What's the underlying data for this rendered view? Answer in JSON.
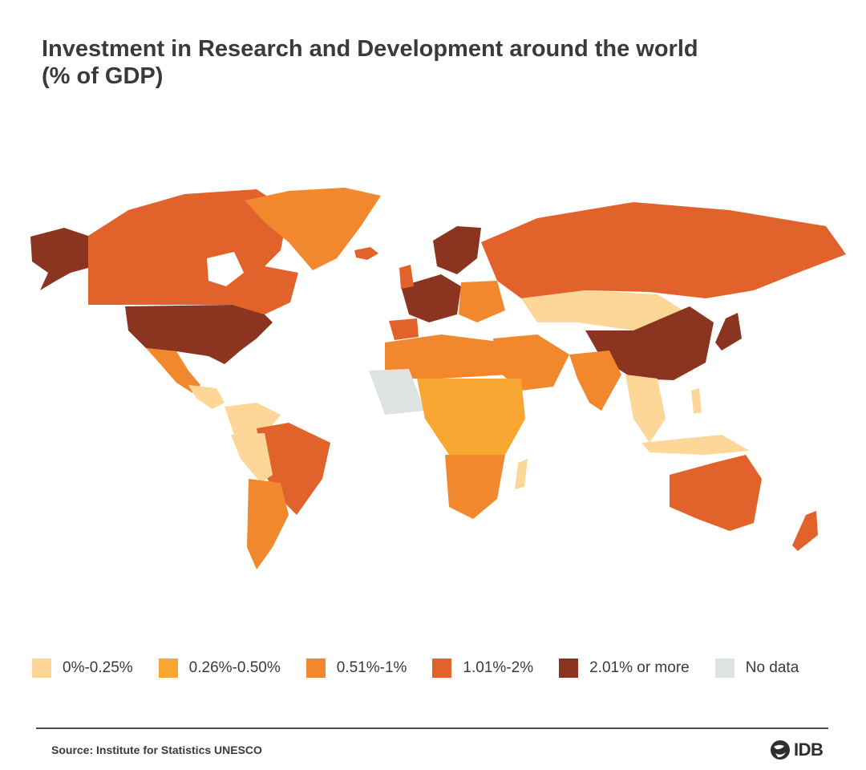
{
  "title": "Investment in Research and Development around the world (% of GDP)",
  "legend": [
    {
      "label": "0%-0.25%",
      "color": "#fdd798"
    },
    {
      "label": "0.26%-0.50%",
      "color": "#f7a731"
    },
    {
      "label": "0.51%-1%",
      "color": "#f2882d"
    },
    {
      "label": "1.01%-2%",
      "color": "#e2622b"
    },
    {
      "label": "2.01% or more",
      "color": "#8b341f"
    },
    {
      "label": "No data",
      "color": "#dfe2e3"
    }
  ],
  "source": "Source: Institute for Statistics UNESCO",
  "logo": {
    "text": "IDB",
    "icon": "globe-hand-icon"
  },
  "map_data": {
    "regions": [
      {
        "name": "Alaska",
        "category": "2.01% or more"
      },
      {
        "name": "Canada",
        "category": "1.01%-2%"
      },
      {
        "name": "Greenland",
        "category": "0.51%-1%"
      },
      {
        "name": "Iceland",
        "category": "1.01%-2%"
      },
      {
        "name": "United States",
        "category": "2.01% or more"
      },
      {
        "name": "Mexico",
        "category": "0.51%-1%"
      },
      {
        "name": "Central America",
        "category": "0%-0.25%"
      },
      {
        "name": "Colombia / Venezuela",
        "category": "0%-0.25%"
      },
      {
        "name": "Brazil",
        "category": "1.01%-2%"
      },
      {
        "name": "Argentina / Chile",
        "category": "0.51%-1%"
      },
      {
        "name": "Western Europe",
        "category": "2.01% or more"
      },
      {
        "name": "Scandinavia",
        "category": "2.01% or more"
      },
      {
        "name": "Spain",
        "category": "1.01%-2%"
      },
      {
        "name": "Russia",
        "category": "1.01%-2%"
      },
      {
        "name": "Kazakhstan / Mongolia",
        "category": "0%-0.25%"
      },
      {
        "name": "China",
        "category": "2.01% or more"
      },
      {
        "name": "Japan / Korea",
        "category": "2.01% or more"
      },
      {
        "name": "India",
        "category": "0.51%-1%"
      },
      {
        "name": "Middle East",
        "category": "0.51%-1%"
      },
      {
        "name": "North Africa",
        "category": "0.51%-1%"
      },
      {
        "name": "West Africa",
        "category": "No data"
      },
      {
        "name": "Central Africa",
        "category": "0.26%-0.50%"
      },
      {
        "name": "Southern Africa",
        "category": "0.51%-1%"
      },
      {
        "name": "Southeast Asia",
        "category": "0%-0.25%"
      },
      {
        "name": "Australia",
        "category": "1.01%-2%"
      },
      {
        "name": "New Zealand",
        "category": "1.01%-2%"
      }
    ]
  }
}
